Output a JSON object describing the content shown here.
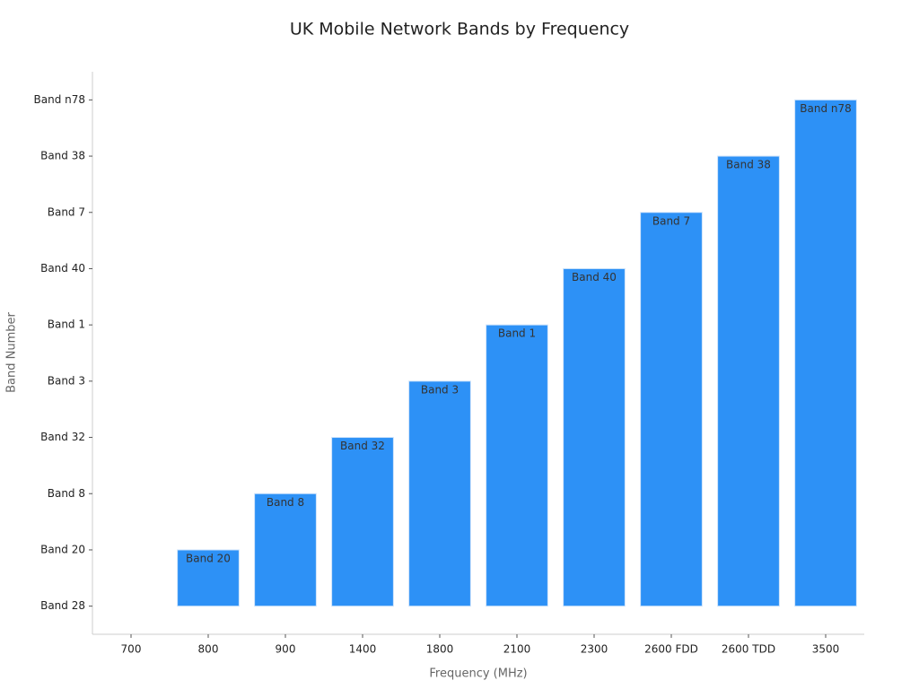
{
  "chart_data": {
    "type": "bar",
    "title": "UK Mobile Network Bands by Frequency",
    "x_label": "Frequency (MHz)",
    "y_label": "Band Number",
    "categories": [
      "700",
      "800",
      "900",
      "1400",
      "1800",
      "2100",
      "2300",
      "2600 FDD",
      "2600 TDD",
      "3500"
    ],
    "values": [
      0,
      1,
      2,
      3,
      4,
      5,
      6,
      7,
      8,
      9
    ],
    "color": "#2d91f6",
    "ylim": [
      -0.5,
      9.5
    ],
    "yticks": [
      {
        "value": 0,
        "label": "Band 28"
      },
      {
        "value": 1,
        "label": "Band 20"
      },
      {
        "value": 2,
        "label": "Band 8"
      },
      {
        "value": 3,
        "label": "Band 32"
      },
      {
        "value": 4,
        "label": "Band 3"
      },
      {
        "value": 5,
        "label": "Band 1"
      },
      {
        "value": 6,
        "label": "Band 40"
      },
      {
        "value": 7,
        "label": "Band 7"
      },
      {
        "value": 8,
        "label": "Band 38"
      },
      {
        "value": 9,
        "label": "Band n78"
      }
    ],
    "grid": false
  }
}
